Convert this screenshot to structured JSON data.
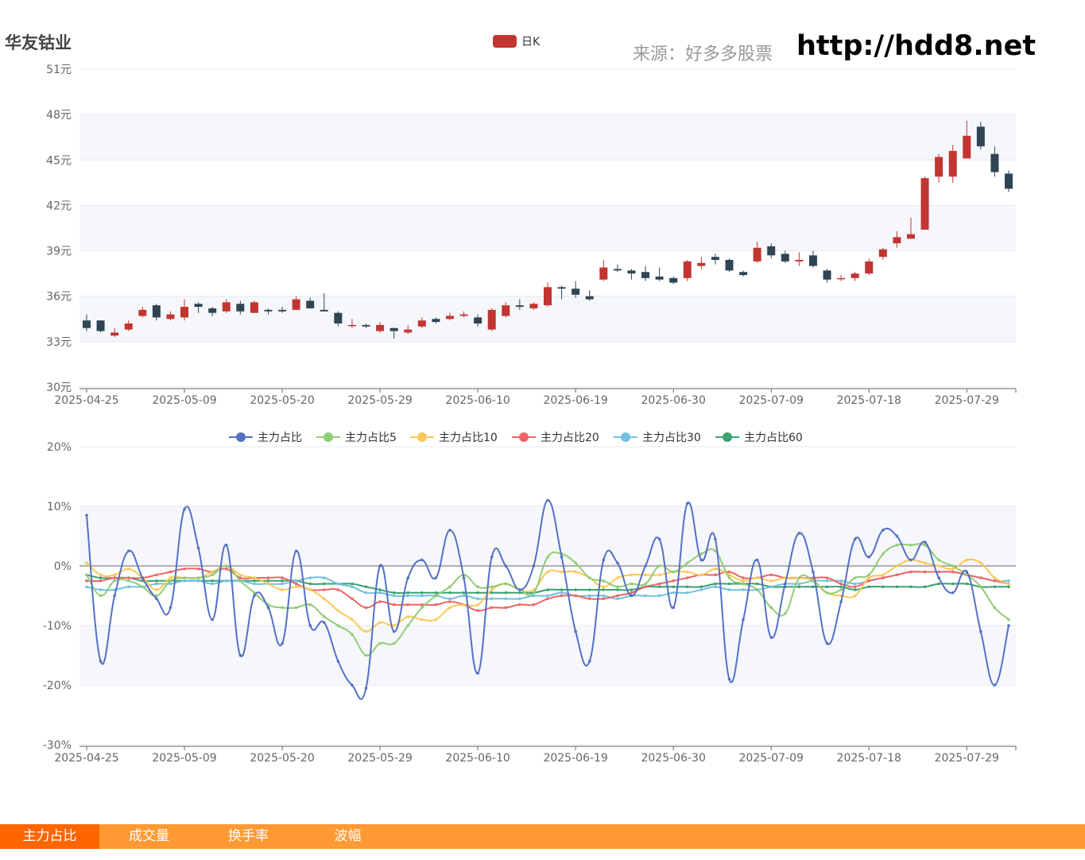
{
  "page": {
    "title": "华友钴业",
    "source": "来源：好多多股票",
    "site": "http://hdd8.net"
  },
  "tabs": [
    {
      "label": "主力占比",
      "active": true
    },
    {
      "label": "成交量",
      "active": false
    },
    {
      "label": "换手率",
      "active": false
    },
    {
      "label": "波幅",
      "active": false
    }
  ],
  "colors": {
    "up": "#c23531",
    "down": "#2f4554"
  },
  "chart_data": [
    {
      "type": "candlestick",
      "legend": [
        "日K"
      ],
      "y_ticks": [
        "51元",
        "48元",
        "45元",
        "42元",
        "39元",
        "36元",
        "33元",
        "30元"
      ],
      "ylim": [
        30,
        51
      ],
      "x_ticks": [
        "2025-04-25",
        "2025-05-09",
        "2025-05-20",
        "2025-05-29",
        "2025-06-10",
        "2025-06-19",
        "2025-06-30",
        "2025-07-09",
        "2025-07-18",
        "2025-07-29"
      ],
      "candles": [
        [
          34.4,
          33.9,
          34.8,
          33.7
        ],
        [
          34.4,
          33.7,
          34.4,
          33.6
        ],
        [
          33.4,
          33.6,
          33.9,
          33.3
        ],
        [
          33.8,
          34.2,
          34.4,
          33.7
        ],
        [
          34.7,
          35.1,
          35.3,
          34.6
        ],
        [
          35.4,
          34.6,
          35.5,
          34.4
        ],
        [
          34.5,
          34.8,
          35.0,
          34.4
        ],
        [
          34.6,
          35.3,
          35.8,
          34.4
        ],
        [
          35.5,
          35.3,
          35.6,
          34.9
        ],
        [
          35.2,
          34.9,
          35.3,
          34.7
        ],
        [
          35.0,
          35.6,
          35.8,
          34.9
        ],
        [
          35.5,
          35.0,
          35.7,
          34.8
        ],
        [
          34.9,
          35.6,
          35.7,
          34.9
        ],
        [
          35.1,
          35.0,
          35.2,
          34.8
        ],
        [
          35.1,
          35.0,
          35.3,
          34.9
        ],
        [
          35.1,
          35.8,
          36.0,
          35.1
        ],
        [
          35.7,
          35.2,
          35.9,
          35.2
        ],
        [
          35.1,
          35.0,
          36.2,
          35.0
        ],
        [
          34.9,
          34.2,
          35.0,
          34.0
        ],
        [
          34.1,
          34.1,
          34.5,
          33.9
        ],
        [
          34.1,
          34.0,
          34.2,
          33.9
        ],
        [
          33.7,
          34.1,
          34.3,
          33.6
        ],
        [
          33.9,
          33.7,
          33.9,
          33.2
        ],
        [
          33.6,
          33.8,
          34.1,
          33.5
        ],
        [
          34.0,
          34.4,
          34.6,
          33.9
        ],
        [
          34.5,
          34.3,
          34.6,
          34.2
        ],
        [
          34.5,
          34.7,
          34.9,
          34.4
        ],
        [
          34.7,
          34.8,
          35.0,
          34.6
        ],
        [
          34.6,
          34.2,
          34.8,
          34.0
        ],
        [
          33.8,
          35.1,
          35.2,
          33.7
        ],
        [
          34.7,
          35.4,
          35.6,
          34.6
        ],
        [
          35.4,
          35.3,
          35.8,
          35.1
        ],
        [
          35.2,
          35.5,
          35.6,
          35.1
        ],
        [
          35.4,
          36.6,
          36.9,
          35.3
        ],
        [
          36.6,
          36.5,
          36.7,
          35.8
        ],
        [
          36.5,
          36.1,
          37.0,
          35.9
        ],
        [
          36.0,
          35.8,
          36.4,
          35.7
        ],
        [
          37.1,
          37.9,
          38.4,
          37.0
        ],
        [
          37.8,
          37.7,
          38.1,
          37.6
        ],
        [
          37.7,
          37.5,
          37.8,
          37.1
        ],
        [
          37.6,
          37.2,
          38.0,
          37.0
        ],
        [
          37.3,
          37.1,
          37.9,
          37.0
        ],
        [
          37.2,
          36.9,
          37.3,
          36.8
        ],
        [
          37.2,
          38.3,
          38.4,
          37.0
        ],
        [
          38.0,
          38.2,
          38.6,
          37.8
        ],
        [
          38.6,
          38.4,
          38.8,
          38.1
        ],
        [
          38.4,
          37.7,
          38.5,
          37.6
        ],
        [
          37.6,
          37.4,
          37.7,
          37.3
        ],
        [
          38.3,
          39.2,
          39.6,
          38.2
        ],
        [
          39.3,
          38.7,
          39.5,
          38.5
        ],
        [
          38.8,
          38.3,
          39.0,
          38.2
        ],
        [
          38.3,
          38.4,
          38.9,
          38.0
        ],
        [
          38.7,
          38.0,
          39.0,
          37.9
        ],
        [
          37.7,
          37.1,
          37.8,
          36.9
        ],
        [
          37.2,
          37.2,
          37.4,
          37.0
        ],
        [
          37.2,
          37.5,
          37.6,
          37.0
        ],
        [
          37.5,
          38.3,
          38.5,
          37.4
        ],
        [
          38.6,
          39.1,
          39.2,
          38.4
        ],
        [
          39.5,
          39.9,
          40.3,
          39.2
        ],
        [
          39.8,
          40.1,
          41.2,
          39.8
        ],
        [
          40.4,
          43.8,
          43.9,
          40.4
        ],
        [
          43.9,
          45.2,
          45.4,
          43.5
        ],
        [
          43.9,
          45.6,
          46.0,
          43.5
        ],
        [
          45.1,
          46.6,
          47.6,
          45.1
        ],
        [
          47.2,
          45.9,
          47.5,
          45.7
        ],
        [
          45.4,
          44.2,
          45.9,
          43.9
        ],
        [
          44.1,
          43.1,
          44.3,
          42.9
        ]
      ]
    },
    {
      "type": "line",
      "legend": [
        "主力占比",
        "主力占比5",
        "主力占比10",
        "主力占比20",
        "主力占比30",
        "主力占比60"
      ],
      "series_colors": [
        "#5470c6",
        "#91cc75",
        "#fac858",
        "#ee6666",
        "#73c0de",
        "#3ba272"
      ],
      "y_ticks": [
        "20%",
        "10%",
        "0%",
        "-10%",
        "-20%",
        "-30%"
      ],
      "ylim": [
        -30,
        20
      ],
      "x_ticks": [
        "2025-04-25",
        "2025-05-09",
        "2025-05-20",
        "2025-05-29",
        "2025-06-10",
        "2025-06-19",
        "2025-06-30",
        "2025-07-09",
        "2025-07-18",
        "2025-07-29"
      ],
      "series": [
        {
          "name": "主力占比",
          "values": [
            8.5,
            -16,
            -5,
            2.5,
            -2,
            -5.5,
            -7,
            9.5,
            3,
            -9,
            3.5,
            -15,
            -5,
            -7,
            -13,
            2.5,
            -10,
            -9.5,
            -16,
            -20,
            -20.5,
            0,
            -11,
            -2,
            1,
            -2,
            6,
            -2,
            -18,
            1.5,
            0,
            -4,
            0,
            11,
            1.5,
            -11,
            -16,
            1,
            0.5,
            -5,
            0,
            4.5,
            -7,
            10.5,
            1,
            4.5,
            -19,
            -9,
            1,
            -12,
            -3,
            5.5,
            -1,
            -13,
            -6,
            4.5,
            1.5,
            6,
            5,
            1,
            4,
            -2,
            -4.5,
            -1,
            -11,
            -20,
            -10
          ]
        },
        {
          "name": "主力占比5",
          "values": [
            -1.5,
            -5,
            -2.5,
            -2.5,
            -3.5,
            -5,
            -2.5,
            -2,
            -2,
            -1.5,
            0,
            -2.5,
            -4.5,
            -6.5,
            -7,
            -7,
            -6.5,
            -8.5,
            -10,
            -11.5,
            -15,
            -13,
            -13,
            -10,
            -7,
            -5,
            -3.5,
            -1.5,
            -3.5,
            -3.5,
            -3,
            -4,
            -4.5,
            1.5,
            2,
            0.5,
            -2,
            -2.5,
            -3.5,
            -3,
            -3,
            0,
            -1,
            0.5,
            2,
            2.5,
            -2,
            -3,
            -4,
            -7,
            -8,
            -2,
            -2.5,
            -4.5,
            -4,
            -2,
            -1.5,
            2,
            3.5,
            3.5,
            3.5,
            1,
            0,
            -1.5,
            -3.5,
            -7,
            -9
          ]
        },
        {
          "name": "主力占比10",
          "values": [
            0.5,
            -1.5,
            -1.5,
            -0.5,
            -2,
            -4,
            -2,
            -2,
            -2,
            -1,
            0,
            -1.5,
            -2,
            -3,
            -4,
            -3.5,
            -4,
            -5.5,
            -7.5,
            -9,
            -11,
            -9.5,
            -10,
            -8.5,
            -9,
            -9,
            -7,
            -6.5,
            -6.5,
            -4,
            -3,
            -4,
            -4,
            -1,
            -1,
            -1,
            -2,
            -3.5,
            -2,
            -1.5,
            -1.5,
            -1.5,
            -1,
            -1,
            -1.5,
            -0.5,
            -1.5,
            -2.5,
            -2,
            -2.5,
            -2,
            -2,
            -2.5,
            -4.5,
            -5,
            -5,
            -2,
            -1.5,
            0,
            1,
            0.5,
            0,
            -0.5,
            1,
            0.5,
            -2,
            -3
          ]
        },
        {
          "name": "主力占比20",
          "values": [
            -2.5,
            -2.5,
            -2,
            -2,
            -2,
            -1.5,
            -1,
            -0.5,
            -0.5,
            -1,
            -0.5,
            -2,
            -2,
            -2,
            -2,
            -3,
            -4,
            -4,
            -4,
            -5.5,
            -7,
            -6,
            -6.5,
            -6.5,
            -6.5,
            -6.5,
            -6,
            -6.5,
            -7.5,
            -7,
            -7,
            -6.5,
            -6.5,
            -5.5,
            -5,
            -5,
            -5.5,
            -5.5,
            -5,
            -4.5,
            -3.5,
            -3,
            -2.5,
            -2,
            -1.5,
            -1.5,
            -1,
            -2,
            -2,
            -1.5,
            -2,
            -2,
            -2,
            -2,
            -3,
            -3.5,
            -2.5,
            -2,
            -1.5,
            -1,
            -1,
            -1,
            -1,
            -1.5,
            -2,
            -2.5,
            -3
          ]
        },
        {
          "name": "主力占比30",
          "values": [
            -3.5,
            -4,
            -4,
            -3.5,
            -3.5,
            -3,
            -3,
            -2.5,
            -2.5,
            -3,
            -2.5,
            -2.5,
            -3,
            -3,
            -3,
            -2.5,
            -2,
            -2,
            -3,
            -3.5,
            -4.5,
            -4.5,
            -5,
            -5,
            -5,
            -5,
            -5.5,
            -5,
            -5.5,
            -5.5,
            -5.5,
            -5.5,
            -5,
            -5,
            -4.5,
            -5,
            -5,
            -5,
            -5.5,
            -5,
            -5,
            -5,
            -4.5,
            -4.5,
            -4,
            -3.5,
            -4,
            -4,
            -4,
            -3.5,
            -3,
            -3,
            -2.5,
            -2.5,
            -2.5,
            -3,
            -2.5,
            -2,
            -1.5,
            -1,
            -1,
            -1,
            -1,
            -1.5,
            -2,
            -2.5,
            -2.5
          ]
        },
        {
          "name": "主力占比60",
          "values": [
            -1.5,
            -2,
            -2,
            -2,
            -2.5,
            -2.5,
            -2.5,
            -2.5,
            -2.5,
            -2.5,
            -2.5,
            -2.5,
            -2.5,
            -2.5,
            -2.5,
            -2.5,
            -3,
            -3,
            -3,
            -3,
            -3.5,
            -4,
            -4.5,
            -4.5,
            -4.5,
            -4.5,
            -4.5,
            -4.5,
            -4.5,
            -4.5,
            -4.5,
            -4.5,
            -4.5,
            -4,
            -4,
            -4,
            -4,
            -4,
            -4,
            -4,
            -3.5,
            -3.5,
            -3.5,
            -3.5,
            -3.5,
            -3,
            -3,
            -3,
            -3,
            -3.5,
            -3.5,
            -3.5,
            -3.5,
            -3.5,
            -3.5,
            -4,
            -3.5,
            -3.5,
            -3.5,
            -3.5,
            -3.5,
            -3,
            -3,
            -3,
            -3.5,
            -3.5,
            -3.5
          ]
        }
      ]
    }
  ]
}
